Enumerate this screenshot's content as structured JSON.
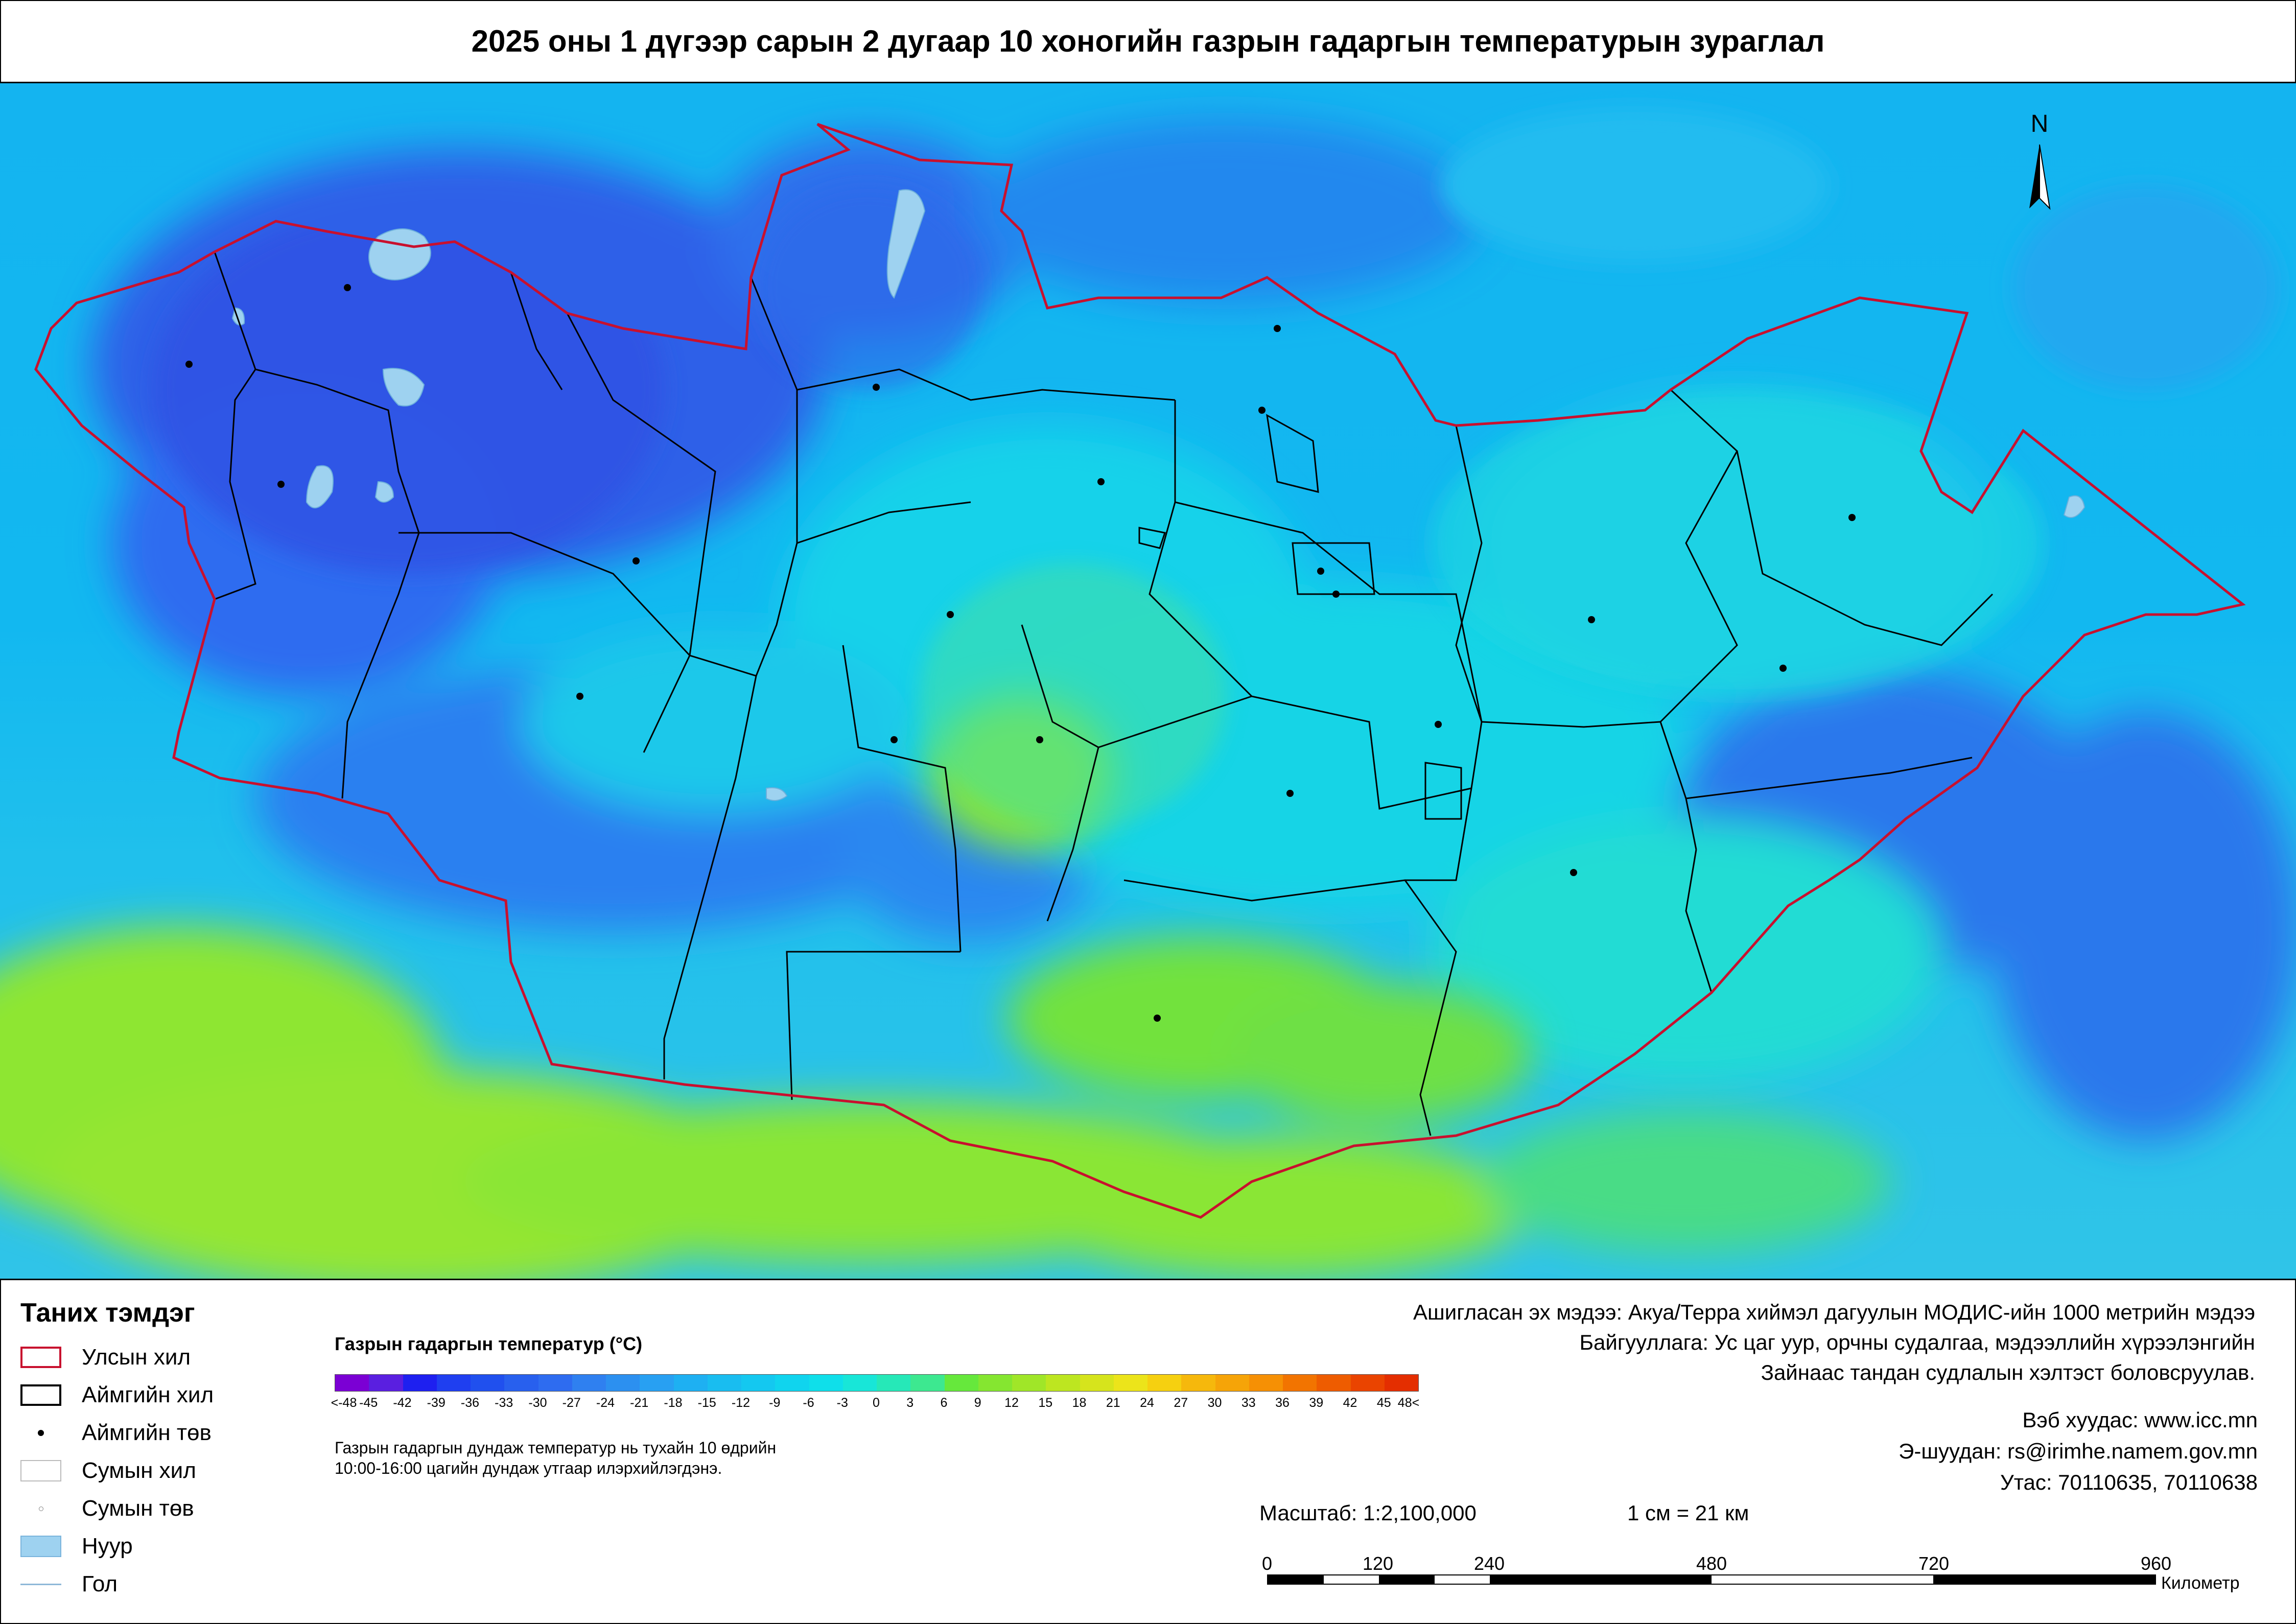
{
  "title": "2025 оны 1 дүгээр сарын 2 дугаар 10 хоногийн газрын гадаргын температурын зураглал",
  "legend": {
    "heading": "Таних тэмдэг",
    "items": [
      {
        "label": "Улсын хил",
        "symbol": "country-border"
      },
      {
        "label": "Аймгийн хил",
        "symbol": "aimag-border"
      },
      {
        "label": "Аймгийн төв",
        "symbol": "aimag-center"
      },
      {
        "label": "Сумын хил",
        "symbol": "sum-border"
      },
      {
        "label": "Сумын төв",
        "symbol": "sum-center"
      },
      {
        "label": "Нуур",
        "symbol": "lake"
      },
      {
        "label": "Гол",
        "symbol": "river"
      }
    ]
  },
  "temperature_scale": {
    "title": "Газрын гадаргын температур (°C)",
    "ticks": [
      "<-48",
      "-45",
      "-42",
      "-39",
      "-36",
      "-33",
      "-30",
      "-27",
      "-24",
      "-21",
      "-18",
      "-15",
      "-12",
      "-9",
      "-6",
      "-3",
      "0",
      "3",
      "6",
      "9",
      "12",
      "15",
      "18",
      "21",
      "24",
      "27",
      "30",
      "33",
      "36",
      "39",
      "42",
      "45",
      "48<"
    ],
    "colors": [
      "#7b00d4",
      "#5a1fe0",
      "#1e20f0",
      "#1f3ff0",
      "#2050ee",
      "#2860ee",
      "#2e6cf0",
      "#2f80f0",
      "#2c90f0",
      "#28a0f2",
      "#1eb0f2",
      "#19bdf0",
      "#14c8f0",
      "#10d4ee",
      "#0fdfea",
      "#18e6d8",
      "#26e8b8",
      "#3de890",
      "#66e83c",
      "#85e630",
      "#a0e628",
      "#bde620",
      "#d6e41c",
      "#ece41a",
      "#f6d010",
      "#f6b80c",
      "#f6a408",
      "#f69004",
      "#f27400",
      "#ee5c00",
      "#ea4400",
      "#e42e00"
    ],
    "note_line1": "Газрын гадаргын дундаж температур нь тухайн 10 өдрийн",
    "note_line2": "10:00-16:00 цагийн дундаж утгаар илэрхийлэгдэнэ."
  },
  "source": {
    "line1": "Ашигласан эх мэдээ: Акуа/Терра хиймэл дагуулын МОДИС-ийн 1000 метрийн мэдээ",
    "line2": "Байгууллага: Ус цаг уур, орчны судалгаа, мэдээллийн хүрээлэнгийн",
    "line3": "Зайнаас тандан судлалын хэлтэст боловсруулав."
  },
  "contacts": {
    "web": "Вэб хуудас: www.icc.mn",
    "email": "Э-шуудан: rs@irimhe.namem.gov.mn",
    "phone": "Утас: 70110635, 70110638"
  },
  "scale": {
    "ratio": "Масштаб: 1:2,100,000",
    "equivalence": "1 см = 21 км",
    "labels": [
      "0",
      "120",
      "240",
      "480",
      "720",
      "960"
    ],
    "unit": "Километр"
  },
  "north_label": "N",
  "map_colors": {
    "land_base": "#1aa8f0",
    "cold": "#2f55e6",
    "mild": "#17d2ea",
    "warm": "#8fe830",
    "lake": "#9ed2f0",
    "country_border": "#c8102e",
    "aimag_border": "#000000"
  }
}
